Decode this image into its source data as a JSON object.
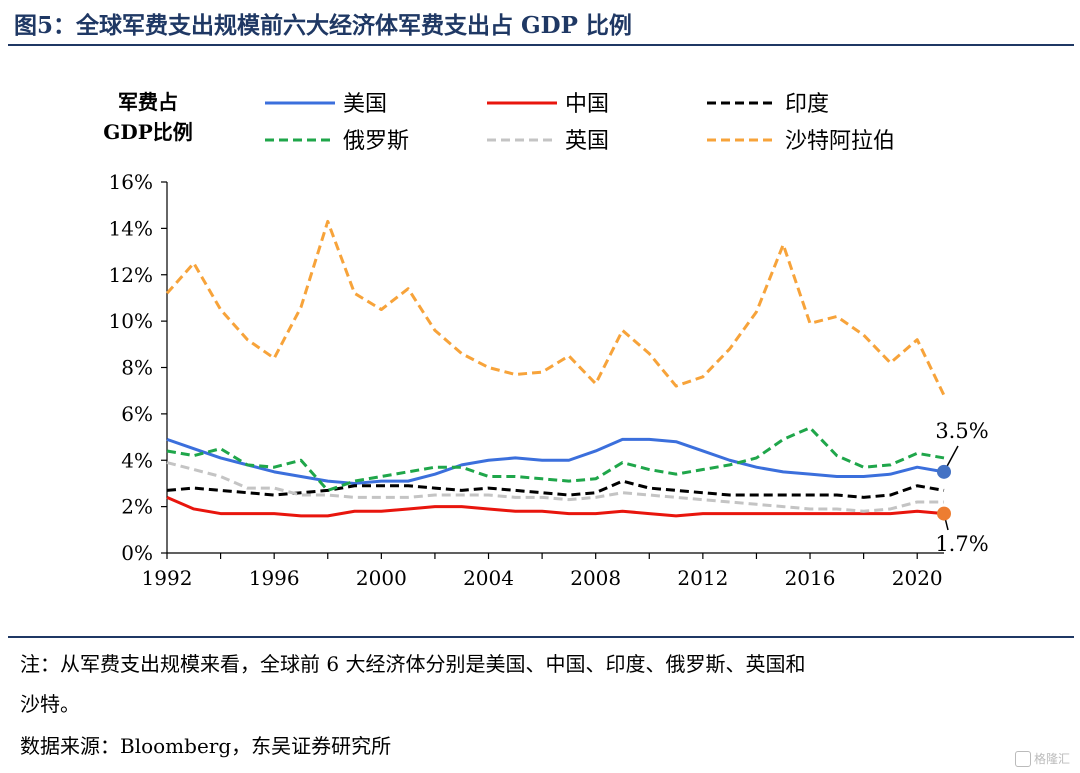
{
  "title": "图5：全球军费支出规模前六大经济体军费支出占 GDP 比例",
  "note_line1": "注：从军费支出规模来看，全球前 6 大经济体分别是美国、中国、印度、俄罗斯、英国和",
  "note_line2": "沙特。",
  "source": "数据来源：Bloomberg，东吴证券研究所",
  "watermark": "格隆汇",
  "chart_data": {
    "type": "line",
    "ylabel_line1": "军费占",
    "ylabel_line2": "GDP比例",
    "ylim": [
      0,
      16
    ],
    "y_ticks": [
      0,
      2,
      4,
      6,
      8,
      10,
      12,
      14,
      16
    ],
    "y_tick_labels": [
      "0%",
      "2%",
      "4%",
      "6%",
      "8%",
      "10%",
      "12%",
      "14%",
      "16%"
    ],
    "xlim": [
      1992,
      2021
    ],
    "x_ticks": [
      1992,
      1996,
      2000,
      2004,
      2008,
      2012,
      2016,
      2020
    ],
    "x_tick_labels": [
      "1992",
      "1996",
      "2000",
      "2004",
      "2008",
      "2012",
      "2016",
      "2020"
    ],
    "grid": false,
    "legend_position": "top",
    "x": [
      1992,
      1993,
      1994,
      1995,
      1996,
      1997,
      1998,
      1999,
      2000,
      2001,
      2002,
      2003,
      2004,
      2005,
      2006,
      2007,
      2008,
      2009,
      2010,
      2011,
      2012,
      2013,
      2014,
      2015,
      2016,
      2017,
      2018,
      2019,
      2020,
      2021
    ],
    "series": [
      {
        "name": "美国",
        "color": "#3b6fdc",
        "dash": "solid",
        "values": [
          4.9,
          4.5,
          4.1,
          3.8,
          3.5,
          3.3,
          3.1,
          3.0,
          3.1,
          3.1,
          3.4,
          3.8,
          4.0,
          4.1,
          4.0,
          4.0,
          4.4,
          4.9,
          4.9,
          4.8,
          4.4,
          4.0,
          3.7,
          3.5,
          3.4,
          3.3,
          3.3,
          3.4,
          3.7,
          3.5
        ]
      },
      {
        "name": "中国",
        "color": "#e8150d",
        "dash": "solid",
        "values": [
          2.4,
          1.9,
          1.7,
          1.7,
          1.7,
          1.6,
          1.6,
          1.8,
          1.8,
          1.9,
          2.0,
          2.0,
          1.9,
          1.8,
          1.8,
          1.7,
          1.7,
          1.8,
          1.7,
          1.6,
          1.7,
          1.7,
          1.7,
          1.7,
          1.7,
          1.7,
          1.7,
          1.7,
          1.8,
          1.7
        ]
      },
      {
        "name": "印度",
        "color": "#000000",
        "dash": "dash",
        "values": [
          2.7,
          2.8,
          2.7,
          2.6,
          2.5,
          2.6,
          2.7,
          2.9,
          2.9,
          2.9,
          2.8,
          2.7,
          2.8,
          2.7,
          2.6,
          2.5,
          2.6,
          3.1,
          2.8,
          2.7,
          2.6,
          2.5,
          2.5,
          2.5,
          2.5,
          2.5,
          2.4,
          2.5,
          2.9,
          2.7
        ]
      },
      {
        "name": "俄罗斯",
        "color": "#1fa64a",
        "dash": "dash",
        "values": [
          4.4,
          4.2,
          4.5,
          3.8,
          3.7,
          4.0,
          2.7,
          3.1,
          3.3,
          3.5,
          3.7,
          3.7,
          3.3,
          3.3,
          3.2,
          3.1,
          3.2,
          3.9,
          3.6,
          3.4,
          3.6,
          3.8,
          4.1,
          4.9,
          5.4,
          4.2,
          3.7,
          3.8,
          4.3,
          4.1
        ]
      },
      {
        "name": "英国",
        "color": "#c4c4c4",
        "dash": "dash",
        "values": [
          3.9,
          3.6,
          3.3,
          2.8,
          2.8,
          2.5,
          2.5,
          2.4,
          2.4,
          2.4,
          2.5,
          2.5,
          2.5,
          2.4,
          2.4,
          2.3,
          2.4,
          2.6,
          2.5,
          2.4,
          2.3,
          2.2,
          2.1,
          2.0,
          1.9,
          1.9,
          1.8,
          1.9,
          2.2,
          2.2
        ]
      },
      {
        "name": "沙特阿拉伯",
        "color": "#f7a33a",
        "dash": "dash",
        "values": [
          11.2,
          12.5,
          10.5,
          9.2,
          8.4,
          10.6,
          14.3,
          11.2,
          10.5,
          11.4,
          9.6,
          8.6,
          8.0,
          7.7,
          7.8,
          8.5,
          7.3,
          9.6,
          8.6,
          7.2,
          7.6,
          8.8,
          10.4,
          13.3,
          9.9,
          10.2,
          9.4,
          8.2,
          9.2,
          6.8
        ]
      }
    ],
    "annotations": [
      {
        "text": "3.5%",
        "x": 2021,
        "y": 3.5,
        "marker_color": "#4472c4"
      },
      {
        "text": "1.7%",
        "x": 2021,
        "y": 1.7,
        "marker_color": "#ed7d31"
      }
    ]
  }
}
